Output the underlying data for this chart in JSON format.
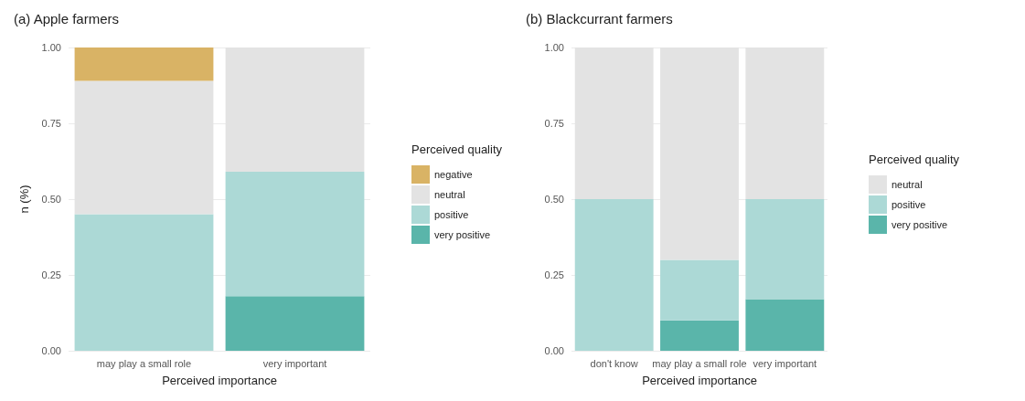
{
  "chart_data": [
    {
      "type": "bar",
      "title": "(a) Apple farmers",
      "xlabel": "Perceived importance",
      "ylabel": "n (%)",
      "legend_title": "Perceived quality",
      "categories": [
        "may play a small role",
        "very important"
      ],
      "stacked": true,
      "ylim": [
        0,
        1
      ],
      "yticks": [
        {
          "value": 0,
          "label": "0.00"
        },
        {
          "value": 0.25,
          "label": "0.25"
        },
        {
          "value": 0.5,
          "label": "0.50"
        },
        {
          "value": 0.75,
          "label": "0.75"
        },
        {
          "value": 1,
          "label": "1.00"
        }
      ],
      "grid": "y",
      "legend": "right",
      "series": [
        {
          "name": "very positive",
          "color": "#5ab5aa",
          "values": [
            null,
            0.18
          ]
        },
        {
          "name": "positive",
          "color": "#acd9d6",
          "values": [
            0.45,
            0.41
          ]
        },
        {
          "name": "neutral",
          "color": "#e3e3e3",
          "values": [
            0.44,
            0.41
          ]
        },
        {
          "name": "negative",
          "color": "#d9b365",
          "values": [
            0.11,
            null
          ]
        }
      ]
    },
    {
      "type": "bar",
      "title": "(b) Blackcurrant farmers",
      "xlabel": "Perceived importance",
      "legend_title": "Perceived quality",
      "categories": [
        "don't know",
        "may play a small role",
        "very important"
      ],
      "stacked": true,
      "ylim": [
        0,
        1
      ],
      "yticks": [
        {
          "value": 0,
          "label": "0.00"
        },
        {
          "value": 0.25,
          "label": "0.25"
        },
        {
          "value": 0.5,
          "label": "0.50"
        },
        {
          "value": 0.75,
          "label": "0.75"
        },
        {
          "value": 1,
          "label": "1.00"
        }
      ],
      "grid": "y",
      "legend": "right",
      "series": [
        {
          "name": "very positive",
          "color": "#5ab5aa",
          "values": [
            null,
            0.1,
            0.17
          ]
        },
        {
          "name": "positive",
          "color": "#acd9d6",
          "values": [
            0.5,
            0.2,
            0.33
          ]
        },
        {
          "name": "neutral",
          "color": "#e3e3e3",
          "values": [
            0.5,
            0.7,
            0.5
          ]
        }
      ]
    }
  ]
}
